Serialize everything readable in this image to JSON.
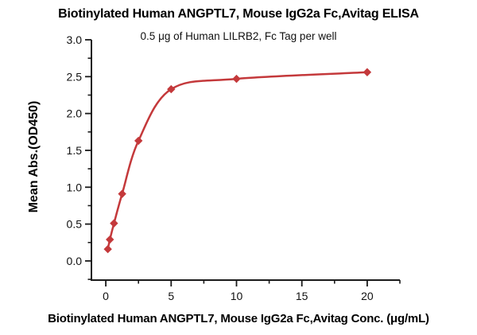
{
  "chart_data": {
    "type": "scatter",
    "title": "Biotinylated Human ANGPTL7, Mouse IgG2a Fc,Avitag ELISA",
    "subtitle": "0.5 μg of Human LILRB2, Fc Tag per well",
    "xlabel": "Biotinylated Human ANGPTL7, Mouse IgG2a Fc,Avitag Conc. (μg/mL)",
    "ylabel": "Mean Abs.(OD450)",
    "series_name": "Biotinylated Human ANGPTL7, Mouse IgG2a Fc,Avitag",
    "x": [
      0.156,
      0.313,
      0.625,
      1.25,
      2.5,
      5,
      10,
      20
    ],
    "y": [
      0.16,
      0.29,
      0.51,
      0.91,
      1.63,
      2.33,
      2.47,
      2.56
    ],
    "fit_curve": "4PL sigmoidal through points",
    "marker": "diamond",
    "grid": false,
    "legend": "none",
    "xlim": [
      -1.1,
      22.5
    ],
    "ylim": [
      -0.26,
      3.0
    ],
    "x_ticks_major": [
      0,
      5,
      10,
      15,
      20
    ],
    "x_tick_labels": [
      "0",
      "5",
      "10",
      "15",
      "20"
    ],
    "x_ticks_minor": [
      2.5,
      7.5,
      12.5,
      17.5,
      22.5
    ],
    "y_ticks_major": [
      0,
      0.5,
      1,
      1.5,
      2,
      2.5,
      3
    ],
    "y_tick_labels": [
      "0.0",
      "0.5",
      "1.0",
      "1.5",
      "2.0",
      "2.5",
      "3.0"
    ],
    "y_ticks_minor": [
      -0.25,
      0.25,
      0.75,
      1.25,
      1.75,
      2.25,
      2.75
    ],
    "colors": {
      "curve": "#c4393b",
      "axis": "#1a1a1a",
      "tick_text": "#111111",
      "title_text": "#000000"
    }
  }
}
